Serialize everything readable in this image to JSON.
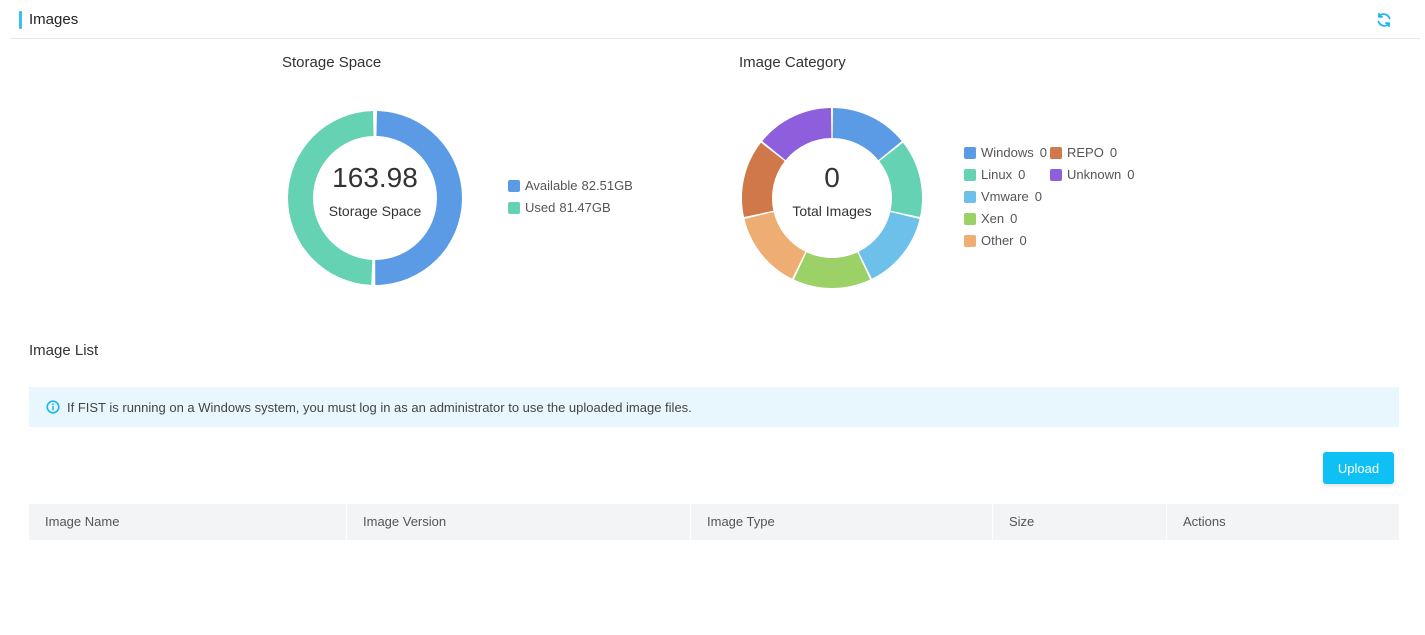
{
  "header": {
    "title": "Images",
    "refresh_icon": "refresh-icon"
  },
  "storage": {
    "title": "Storage Space",
    "total": "163.98",
    "center_label": "Storage Space",
    "legend": [
      {
        "name": "Available",
        "value": "82.51GB",
        "color": "#5b9be6"
      },
      {
        "name": "Used",
        "value": "81.47GB",
        "color": "#64d2b3"
      }
    ]
  },
  "category": {
    "title": "Image Category",
    "total": "0",
    "center_label": "Total Images",
    "legend": [
      {
        "name": "Windows",
        "value": "0",
        "color": "#5b9be6"
      },
      {
        "name": "REPO",
        "value": "0",
        "color": "#d0784a"
      },
      {
        "name": "Linux",
        "value": "0",
        "color": "#64d2b3"
      },
      {
        "name": "Unknown",
        "value": "0",
        "color": "#8d5fdc"
      },
      {
        "name": "Vmware",
        "value": "0",
        "color": "#6cc0ea"
      },
      {
        "name": "Xen",
        "value": "0",
        "color": "#9cd167"
      },
      {
        "name": "Other",
        "value": "0",
        "color": "#eead72"
      }
    ]
  },
  "image_list": {
    "title": "Image List",
    "notice": "If FIST is running on a Windows system, you must log in as an administrator to use the uploaded image files.",
    "upload_label": "Upload",
    "columns": [
      "Image Name",
      "Image Version",
      "Image Type",
      "Size",
      "Actions"
    ]
  },
  "colors": {
    "accent": "#39c2ee",
    "button": "#0fc0f5",
    "notice_bg": "#e8f7fd"
  }
}
